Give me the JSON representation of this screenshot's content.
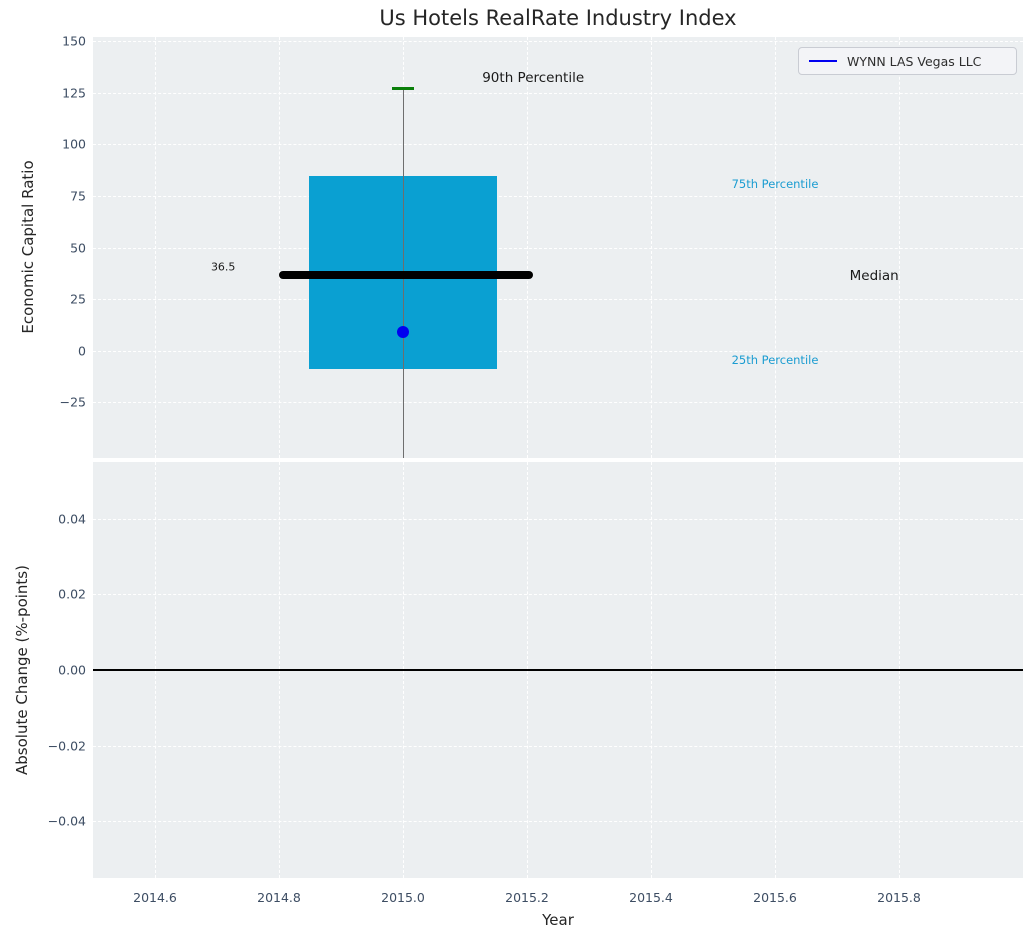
{
  "title": "Us Hotels RealRate Industry Index",
  "legend": {
    "label": "WYNN LAS Vegas LLC",
    "line_color": "#0000f0"
  },
  "colors": {
    "figure_background": "#ffffff",
    "axes_background": "#eceff1",
    "grid": "#ffffff",
    "tick_label": "#3d4d63",
    "box_fill": "#0aa0d2",
    "median_line": "#000000",
    "p90_cap": "#0a7f0a",
    "whisker": "#6e6e6e",
    "company_point": "#0000f0",
    "percentile_text": "#1a9cd1",
    "zero_line": "#000000"
  },
  "chart_data": [
    {
      "type": "box",
      "title": "Us Hotels RealRate Industry Index",
      "xlabel": "Year",
      "ylabel": "Economic Capital Ratio",
      "xlim": [
        2014.5,
        2016.0
      ],
      "ylim": [
        -52,
        152
      ],
      "grid": "white-dashed",
      "legend_position": "upper-right",
      "xticks": [
        {
          "v": 2014.6,
          "label": "2014.6"
        },
        {
          "v": 2014.8,
          "label": "2014.8"
        },
        {
          "v": 2015.0,
          "label": "2015.0"
        },
        {
          "v": 2015.2,
          "label": "2015.2"
        },
        {
          "v": 2015.4,
          "label": "2015.4"
        },
        {
          "v": 2015.6,
          "label": "2015.6"
        },
        {
          "v": 2015.8,
          "label": "2015.8"
        }
      ],
      "yticks": [
        {
          "v": 150,
          "label": "150"
        },
        {
          "v": 125,
          "label": "125"
        },
        {
          "v": 100,
          "label": "100"
        },
        {
          "v": 75,
          "label": "75"
        },
        {
          "v": 50,
          "label": "50"
        },
        {
          "v": 25,
          "label": "25"
        },
        {
          "v": 0,
          "label": "0"
        },
        {
          "v": -25,
          "label": "−25"
        }
      ],
      "box": {
        "x": 2015.0,
        "q25": -9,
        "median": 36.5,
        "q75": 84.5,
        "p90": 127,
        "whisker_low_clipped_at": -52,
        "box_half_width": 0.151,
        "median_line_x1": 2014.8,
        "median_line_x2": 2015.21,
        "cap_half_width": 0.018
      },
      "company_point": {
        "label": "WYNN LAS Vegas LLC",
        "x": 2015.0,
        "y": 9
      },
      "annotations": [
        {
          "text": "90th Percentile",
          "x": 2015.21,
          "y": 132,
          "color": "#1a1a1a",
          "size": 13.5
        },
        {
          "text": "75th Percentile",
          "x": 2015.6,
          "y": 81,
          "color": "#1a9cd1",
          "size": 11.5
        },
        {
          "text": "Median",
          "x": 2015.76,
          "y": 36,
          "color": "#1a1a1a",
          "size": 13.5
        },
        {
          "text": "25th Percentile",
          "x": 2015.6,
          "y": -4.5,
          "color": "#1a9cd1",
          "size": 11.5
        },
        {
          "text": "36.5",
          "x": 2014.71,
          "y": 40.5,
          "color": "#1a1a1a",
          "size": 11
        }
      ]
    },
    {
      "type": "line",
      "xlabel": "Year",
      "ylabel": "Absolute Change (%-points)",
      "xlim": [
        2014.5,
        2016.0
      ],
      "ylim": [
        -0.055,
        0.055
      ],
      "grid": "white-dashed",
      "xticks": [
        {
          "v": 2014.6,
          "label": "2014.6"
        },
        {
          "v": 2014.8,
          "label": "2014.8"
        },
        {
          "v": 2015.0,
          "label": "2015.0"
        },
        {
          "v": 2015.2,
          "label": "2015.2"
        },
        {
          "v": 2015.4,
          "label": "2015.4"
        },
        {
          "v": 2015.6,
          "label": "2015.6"
        },
        {
          "v": 2015.8,
          "label": "2015.8"
        }
      ],
      "yticks": [
        {
          "v": 0.04,
          "label": "0.04"
        },
        {
          "v": 0.02,
          "label": "0.02"
        },
        {
          "v": 0.0,
          "label": "0.00"
        },
        {
          "v": -0.02,
          "label": "−0.02"
        },
        {
          "v": -0.04,
          "label": "−0.04"
        }
      ],
      "zero_line_y": 0.0,
      "series": [
        {
          "name": "WYNN LAS Vegas LLC",
          "x": [],
          "y": []
        }
      ]
    }
  ]
}
